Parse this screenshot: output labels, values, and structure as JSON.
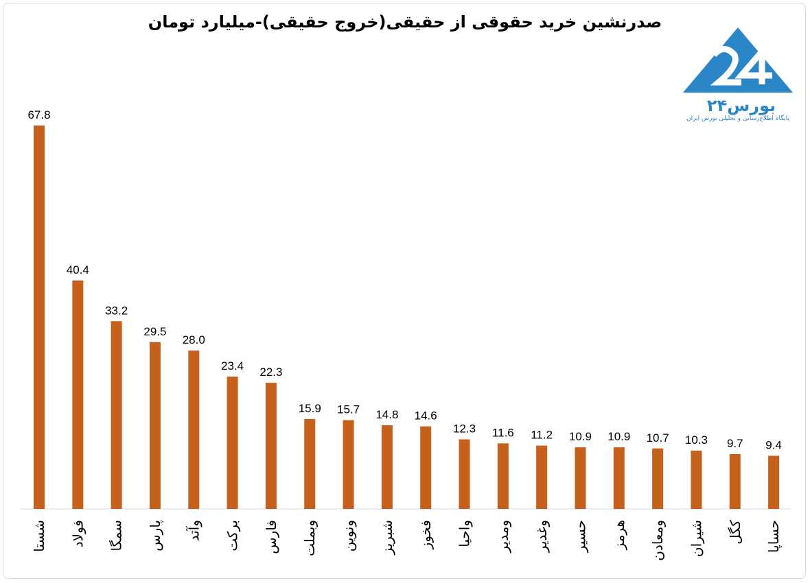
{
  "title": "صدرنشین خرید حقوقی از حقیقی(خروج حقیقی)-میلیارد تومان",
  "logo": {
    "name": "بورس۲۴",
    "tagline": "پایگاه اطلاع‌رسانی و تحلیلی بورس ایران",
    "color": "#2a86c6"
  },
  "chart_data": {
    "type": "bar",
    "title": "صدرنشین خرید حقوقی از حقیقی(خروج حقیقی)-میلیارد تومان",
    "categories": [
      "شستا",
      "فولاد",
      "سمگا",
      "پارس",
      "وآتد",
      "برکت",
      "فارس",
      "وبملت",
      "ونوین",
      "شبریز",
      "فخوز",
      "واحیا",
      "ومدیر",
      "وغدیر",
      "حسیر",
      "هرمز",
      "ومعادن",
      "شیران",
      "کگل",
      "حساپا"
    ],
    "values": [
      67.8,
      40.4,
      33.2,
      29.5,
      28.0,
      23.4,
      22.3,
      15.9,
      15.7,
      14.8,
      14.6,
      12.3,
      11.6,
      11.2,
      10.9,
      10.9,
      10.7,
      10.3,
      9.7,
      9.4
    ],
    "labels": [
      "67.8",
      "40.4",
      "33.2",
      "29.5",
      "28.0",
      "23.4",
      "22.3",
      "15.9",
      "15.7",
      "14.8",
      "14.6",
      "12.3",
      "11.6",
      "11.2",
      "10.9",
      "10.9",
      "10.7",
      "10.3",
      "9.7",
      "9.4"
    ],
    "ylim": [
      0,
      70
    ],
    "bar_color": "#c5601d",
    "grid": false,
    "xlabel": "",
    "ylabel": ""
  }
}
